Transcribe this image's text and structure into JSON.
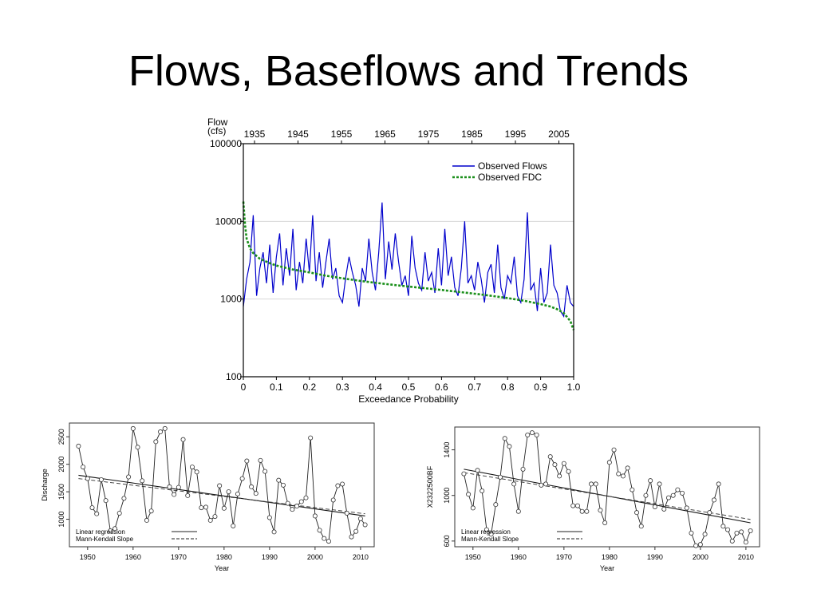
{
  "slide": {
    "title": "Flows, Baseflows and Trends"
  },
  "chart_data": [
    {
      "id": "flow-duration",
      "type": "line",
      "ylabel_lines": [
        "Flow",
        "(cfs)"
      ],
      "xlabel": "Exceedance Probability",
      "yscale": "log",
      "ylim": [
        100,
        100000
      ],
      "xlim": [
        0,
        1
      ],
      "y_ticks": [
        "100",
        "1000",
        "10000",
        "100000"
      ],
      "x_ticks": [
        "0",
        "0.1",
        "0.2",
        "0.3",
        "0.4",
        "0.5",
        "0.6",
        "0.7",
        "0.8",
        "0.9",
        "1.0"
      ],
      "top_axis_ticks": [
        "1935",
        "1945",
        "1955",
        "1965",
        "1975",
        "1985",
        "1995",
        "2005"
      ],
      "grid": "horizontal",
      "legend_position": "top-right",
      "series": [
        {
          "name": "Observed Flows",
          "color": "#0000cc",
          "style": "solid",
          "x": [
            0.0,
            0.01,
            0.02,
            0.03,
            0.04,
            0.05,
            0.06,
            0.07,
            0.08,
            0.09,
            0.1,
            0.11,
            0.12,
            0.13,
            0.14,
            0.15,
            0.16,
            0.17,
            0.18,
            0.19,
            0.2,
            0.21,
            0.22,
            0.23,
            0.24,
            0.25,
            0.26,
            0.27,
            0.28,
            0.29,
            0.3,
            0.31,
            0.32,
            0.33,
            0.34,
            0.35,
            0.36,
            0.37,
            0.38,
            0.39,
            0.4,
            0.41,
            0.42,
            0.43,
            0.44,
            0.45,
            0.46,
            0.47,
            0.48,
            0.49,
            0.5,
            0.51,
            0.52,
            0.53,
            0.54,
            0.55,
            0.56,
            0.57,
            0.58,
            0.59,
            0.6,
            0.61,
            0.62,
            0.63,
            0.64,
            0.65,
            0.66,
            0.67,
            0.68,
            0.69,
            0.7,
            0.71,
            0.72,
            0.73,
            0.74,
            0.75,
            0.76,
            0.77,
            0.78,
            0.79,
            0.8,
            0.81,
            0.82,
            0.83,
            0.84,
            0.85,
            0.86,
            0.87,
            0.88,
            0.89,
            0.9,
            0.91,
            0.92,
            0.93,
            0.94,
            0.95,
            0.96,
            0.97,
            0.98,
            0.99,
            1.0
          ],
          "values": [
            800,
            1800,
            3000,
            12000,
            1100,
            2500,
            4000,
            1600,
            5000,
            1200,
            3500,
            7000,
            1500,
            4500,
            2000,
            8000,
            1300,
            3000,
            1600,
            6000,
            2200,
            12000,
            1700,
            4000,
            1400,
            3000,
            6000,
            1800,
            2500,
            1100,
            900,
            1900,
            3500,
            2200,
            1500,
            800,
            2500,
            1700,
            6000,
            2200,
            1300,
            4000,
            17500,
            1800,
            5500,
            2400,
            7000,
            3000,
            1500,
            2000,
            1100,
            6500,
            2500,
            1600,
            1300,
            4000,
            1700,
            2200,
            1200,
            4500,
            1500,
            8000,
            2000,
            3500,
            1400,
            1100,
            2500,
            10000,
            1600,
            2000,
            1300,
            3000,
            1800,
            900,
            2200,
            2800,
            1200,
            5000,
            1400,
            1000,
            2000,
            1600,
            3500,
            1100,
            900,
            1800,
            13000,
            1300,
            1600,
            700,
            2500,
            900,
            1200,
            5000,
            1500,
            1200,
            700,
            600,
            1500,
            900,
            800
          ]
        },
        {
          "name": "Observed FDC",
          "color": "#1a8f1a",
          "style": "dashed",
          "x": [
            0,
            0.005,
            0.01,
            0.02,
            0.03,
            0.05,
            0.08,
            0.1,
            0.15,
            0.2,
            0.25,
            0.3,
            0.35,
            0.4,
            0.45,
            0.5,
            0.55,
            0.6,
            0.65,
            0.7,
            0.75,
            0.8,
            0.85,
            0.9,
            0.93,
            0.95,
            0.97,
            0.99,
            1.0
          ],
          "values": [
            18000,
            9000,
            6000,
            4500,
            3900,
            3300,
            2900,
            2700,
            2400,
            2200,
            2000,
            1850,
            1720,
            1620,
            1530,
            1450,
            1380,
            1310,
            1240,
            1170,
            1100,
            1030,
            950,
            860,
            800,
            740,
            660,
            520,
            400
          ]
        }
      ]
    },
    {
      "id": "discharge-trend",
      "type": "line",
      "xlabel": "Year",
      "ylabel": "Discharge",
      "xlim": [
        1946,
        2013
      ],
      "ylim": [
        500,
        2750
      ],
      "x_ticks": [
        "1950",
        "1960",
        "1970",
        "1980",
        "1990",
        "2000",
        "2010"
      ],
      "y_ticks": [
        "1000",
        "1500",
        "2000",
        "2500"
      ],
      "legend_position": "bottom-left",
      "legend": [
        "Linear regression",
        "Mann-Kendall Slope"
      ],
      "x": [
        1948,
        1949,
        1950,
        1951,
        1952,
        1953,
        1954,
        1955,
        1956,
        1957,
        1958,
        1959,
        1960,
        1961,
        1962,
        1963,
        1964,
        1965,
        1966,
        1967,
        1968,
        1969,
        1970,
        1971,
        1972,
        1973,
        1974,
        1975,
        1976,
        1977,
        1978,
        1979,
        1980,
        1981,
        1982,
        1983,
        1984,
        1985,
        1986,
        1987,
        1988,
        1989,
        1990,
        1991,
        1992,
        1993,
        1994,
        1995,
        1996,
        1997,
        1998,
        1999,
        2000,
        2001,
        2002,
        2003,
        2004,
        2005,
        2006,
        2007,
        2008,
        2009,
        2010,
        2011
      ],
      "values": [
        2330,
        1950,
        1740,
        1210,
        1100,
        1720,
        1340,
        790,
        830,
        1110,
        1380,
        1770,
        2650,
        2310,
        1700,
        980,
        1150,
        2410,
        2590,
        2650,
        1590,
        1450,
        1580,
        2450,
        1430,
        1950,
        1860,
        1210,
        1220,
        980,
        1050,
        1610,
        1200,
        1500,
        880,
        1460,
        1740,
        2060,
        1590,
        1470,
        2070,
        1870,
        1030,
        770,
        1710,
        1620,
        1290,
        1180,
        1240,
        1320,
        1390,
        2480,
        1060,
        800,
        650,
        600,
        1350,
        1610,
        1640,
        1110,
        680,
        780,
        1010,
        900
      ],
      "regression": {
        "start": [
          1948,
          1800
        ],
        "end": [
          2011,
          1060
        ]
      },
      "mann_kendall": {
        "start": [
          1948,
          1740
        ],
        "end": [
          2011,
          1100
        ]
      }
    },
    {
      "id": "baseflow-trend",
      "type": "line",
      "xlabel": "Year",
      "ylabel": "X2322500BF",
      "xlim": [
        1946,
        2013
      ],
      "ylim": [
        550,
        1600
      ],
      "x_ticks": [
        "1950",
        "1960",
        "1970",
        "1980",
        "1990",
        "2000",
        "2010"
      ],
      "y_ticks": [
        "600",
        "1000",
        "1400"
      ],
      "legend_position": "bottom-left",
      "legend": [
        "Linear regression",
        "Mann-Kendall Slope"
      ],
      "x": [
        1948,
        1949,
        1950,
        1951,
        1952,
        1953,
        1954,
        1955,
        1956,
        1957,
        1958,
        1959,
        1960,
        1961,
        1962,
        1963,
        1964,
        1965,
        1966,
        1967,
        1968,
        1969,
        1970,
        1971,
        1972,
        1973,
        1974,
        1975,
        1976,
        1977,
        1978,
        1979,
        1980,
        1981,
        1982,
        1983,
        1984,
        1985,
        1986,
        1987,
        1988,
        1989,
        1990,
        1991,
        1992,
        1993,
        1994,
        1995,
        1996,
        1997,
        1998,
        1999,
        2000,
        2001,
        2002,
        2003,
        2004,
        2005,
        2006,
        2007,
        2008,
        2009,
        2010,
        2011
      ],
      "values": [
        1190,
        1010,
        890,
        1220,
        1040,
        700,
        660,
        920,
        1160,
        1500,
        1430,
        1100,
        860,
        1230,
        1530,
        1550,
        1530,
        1090,
        1100,
        1340,
        1270,
        1170,
        1280,
        1210,
        910,
        910,
        860,
        860,
        1100,
        1100,
        870,
        760,
        1290,
        1400,
        1190,
        1170,
        1240,
        1050,
        850,
        730,
        1000,
        1130,
        900,
        1100,
        880,
        980,
        1000,
        1050,
        1020,
        890,
        670,
        560,
        570,
        660,
        850,
        960,
        1100,
        730,
        700,
        600,
        670,
        680,
        590,
        690
      ],
      "regression": {
        "start": [
          1948,
          1230
        ],
        "end": [
          2011,
          760
        ]
      },
      "mann_kendall": {
        "start": [
          1948,
          1200
        ],
        "end": [
          2011,
          790
        ]
      }
    }
  ]
}
